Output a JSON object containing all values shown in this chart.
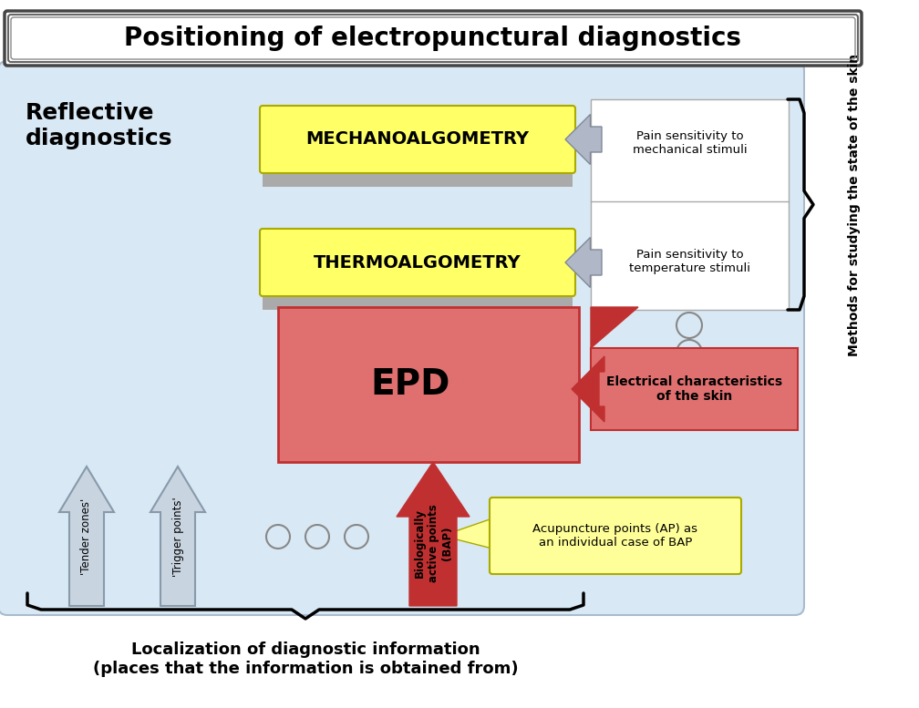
{
  "title": "Positioning of electropunctural diagnostics",
  "reflective_label": "Reflective\ndiagnostics",
  "mechano_label": "MECHANOALGOMETRY",
  "thermo_label": "THERMOALGOMETRY",
  "epd_label": "EPD",
  "pain_mech_label": "Pain sensitivity to\nmechanical stimuli",
  "pain_thermo_label": "Pain sensitivity to\ntemperature stimuli",
  "elec_label": "Electrical characteristics\nof the skin",
  "bap_label": "Biologically\nactive points\n(BAP)",
  "acup_label": "Acupuncture points (AP) as\nan individual case of BAP",
  "tender_label": "'Tender zones'",
  "trigger_label": "'Trigger points'",
  "bottom_label": "Localization of diagnostic information\n(places that the information is obtained from)",
  "right_label": "Methods for studying the state of the skin",
  "yellow": "#FFFF66",
  "yellow_acup": "#FFFF99",
  "red_epd": "#E07070",
  "red_dark": "#C03030",
  "blue_main": "#D8E8F4",
  "gray_arrow": "#B0B8C8",
  "gray_dark": "#808898"
}
